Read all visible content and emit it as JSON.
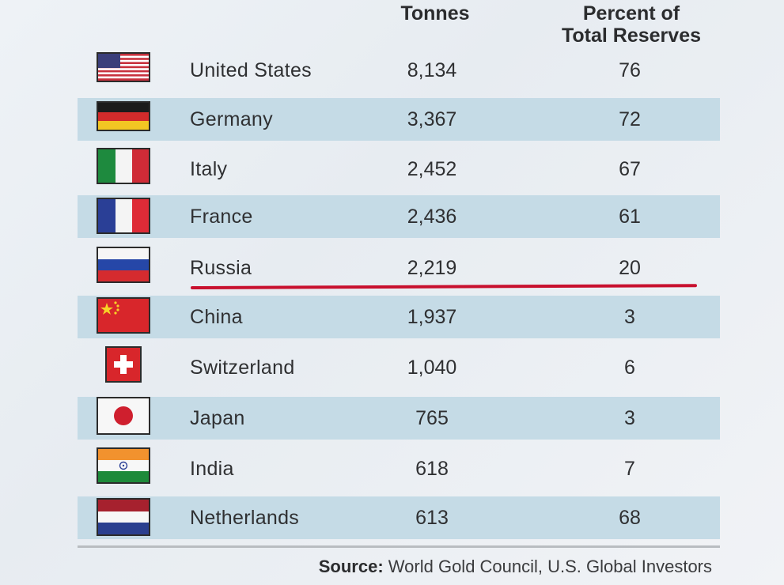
{
  "headers": {
    "tonnes": "Tonnes",
    "percent_line1": "Percent of",
    "percent_line2": "Total Reserves"
  },
  "rows": [
    {
      "country": "United States",
      "tonnes": "8,134",
      "percent": "76",
      "flag": "us-flag-icon"
    },
    {
      "country": "Germany",
      "tonnes": "3,367",
      "percent": "72",
      "flag": "germany-flag-icon"
    },
    {
      "country": "Italy",
      "tonnes": "2,452",
      "percent": "67",
      "flag": "italy-flag-icon"
    },
    {
      "country": "France",
      "tonnes": "2,436",
      "percent": "61",
      "flag": "france-flag-icon"
    },
    {
      "country": "Russia",
      "tonnes": "2,219",
      "percent": "20",
      "flag": "russia-flag-icon"
    },
    {
      "country": "China",
      "tonnes": "1,937",
      "percent": "3",
      "flag": "china-flag-icon"
    },
    {
      "country": "Switzerland",
      "tonnes": "1,040",
      "percent": "6",
      "flag": "switzerland-flag-icon"
    },
    {
      "country": "Japan",
      "tonnes": "765",
      "percent": "3",
      "flag": "japan-flag-icon"
    },
    {
      "country": "India",
      "tonnes": "618",
      "percent": "7",
      "flag": "india-flag-icon"
    },
    {
      "country": "Netherlands",
      "tonnes": "613",
      "percent": "68",
      "flag": "netherlands-flag-icon"
    }
  ],
  "source": {
    "label": "Source:",
    "text": "World Gold Council, U.S. Global Investors"
  },
  "colors": {
    "row_shade": "#c5dbe6",
    "highlight_underline": "#c8102e"
  },
  "chart_data": {
    "type": "table",
    "columns": [
      "",
      "Tonnes",
      "Percent of Total Reserves"
    ],
    "rows": [
      [
        "United States",
        8134,
        76
      ],
      [
        "Germany",
        3367,
        72
      ],
      [
        "Italy",
        2452,
        67
      ],
      [
        "France",
        2436,
        61
      ],
      [
        "Russia",
        2219,
        20
      ],
      [
        "China",
        1937,
        3
      ],
      [
        "Switzerland",
        1040,
        6
      ],
      [
        "Japan",
        765,
        3
      ],
      [
        "India",
        618,
        7
      ],
      [
        "Netherlands",
        613,
        68
      ]
    ]
  }
}
